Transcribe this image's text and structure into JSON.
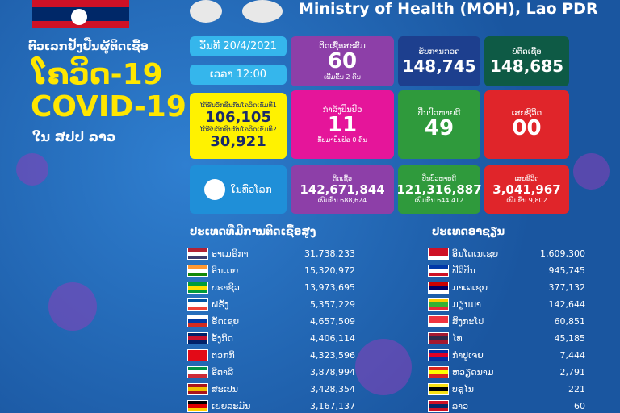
{
  "header": {
    "title": "Ministry of Health (MOH), Lao PDR"
  },
  "left": {
    "subtitle": "ຕົວເລກຢັ້ງຢືນຜູ້ຕິດເຊື້ອ",
    "title_lao": "ໂຄວິດ-19",
    "title_en": "COVID-19",
    "location": "ໃນ ສປປ ລາວ"
  },
  "status": {
    "date": "ວັນທີ 20/4/2021",
    "time": "ເວລາ 12:00"
  },
  "vaccine": {
    "dose1_label": "ໄດ້ຮັບວັກຊີນກັນໂຄວິດເຂັມທີ1",
    "dose1": "106,105",
    "dose2_label": "ໄດ້ຮັບວັກຊີນກັນໂຄວິດເຂັມທີ2",
    "dose2": "30,921"
  },
  "lao": {
    "cumulative": {
      "label": "ຕິດເຊື້ອສະສົມ",
      "value": "60",
      "note": "ເພີ່ມຂຶ້ນ 2 ຄົນ"
    },
    "treating": {
      "label": "ກຳລັງປິ່ນປົວ",
      "value": "11",
      "note": "ກັບມາປິ່ນປົວ 0 ຄົນ"
    },
    "tested": {
      "label": "ຮັບການກວດ",
      "value": "148,745"
    },
    "negative": {
      "label": "ບໍ່ຕິດເຊື້ອ",
      "value": "148,685"
    },
    "recovered": {
      "label": "ປິ່ນປົວຫາຍດີ",
      "value": "49"
    },
    "deaths": {
      "label": "ເສຍຊີວິດ",
      "value": "00"
    }
  },
  "world": {
    "label": "ໃນທົ່ວໂລກ",
    "cases": {
      "label": "ຕິດເຊື້ອ",
      "value": "142,671,844",
      "note": "ເພີ່ມຂຶ້ນ 688,624"
    },
    "recovered": {
      "label": "ປິ່ນປົວຫາຍດີ",
      "value": "121,316,887",
      "note": "ເພີ່ມຂຶ້ນ 644,412"
    },
    "deaths": {
      "label": "ເສຍຊີວິດ",
      "value": "3,041,967",
      "note": "ເພີ່ມຂຶ້ນ 9,802"
    }
  },
  "top_countries": {
    "title": "ປະເທດທີ່ມີການຕິດເຊື້ອສູງ",
    "rows": [
      [
        "ອາເມຣິກາ",
        "31,738,233"
      ],
      [
        "ອິນເດຍ",
        "15,320,972"
      ],
      [
        "ບຣາຊິວ",
        "13,973,695"
      ],
      [
        "ຝຣັ່ງ",
        "5,357,229"
      ],
      [
        "ຣັດເຊຍ",
        "4,657,509"
      ],
      [
        "ອັງກິດ",
        "4,406,114"
      ],
      [
        "ຕວກກີ",
        "4,323,596"
      ],
      [
        "ອີຕາລີ",
        "3,878,994"
      ],
      [
        "ສະເປນ",
        "3,428,354"
      ],
      [
        "ເຢຍລະມັນ",
        "3,167,137"
      ]
    ]
  },
  "asean": {
    "title": "ປະເທດອາຊຽນ",
    "rows": [
      [
        "ອິນໂດເນເຊຍ",
        "1,609,300"
      ],
      [
        "ຟີລິປິນ",
        "945,745"
      ],
      [
        "ມາເລເຊຍ",
        "377,132"
      ],
      [
        "ມຽນມາ",
        "142,644"
      ],
      [
        "ສິງກະໂປ",
        "60,851"
      ],
      [
        "ໄທ",
        "45,185"
      ],
      [
        "ກຳປູເຈຍ",
        "7,444"
      ],
      [
        "ຫວຽດນາມ",
        "2,791"
      ],
      [
        "ບຣູໄນ",
        "221"
      ],
      [
        "ລາວ",
        "60"
      ]
    ]
  }
}
